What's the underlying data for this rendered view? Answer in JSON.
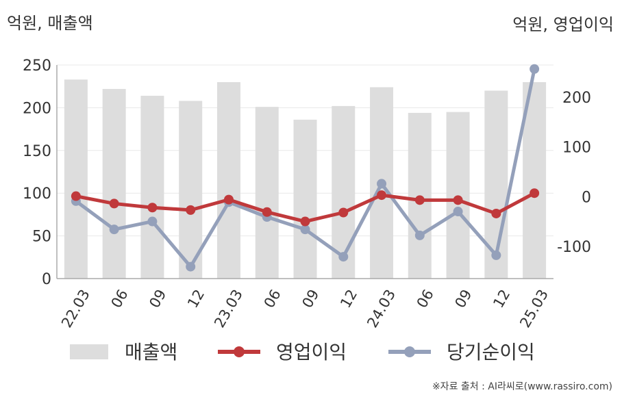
{
  "units": {
    "left": "억원, 매출액",
    "right": "억원, 영업이익"
  },
  "source": "※자료 출처 : AI라씨로(www.rassiro.com)",
  "colors": {
    "bar": "#dddddd",
    "operating_profit": "#c0393b",
    "net_profit": "#94a0ba",
    "grid": "#e8e8e8",
    "axis": "#aaaaaa"
  },
  "chart_data": {
    "type": "bar",
    "categories": [
      "22.03",
      "06",
      "09",
      "12",
      "23.03",
      "06",
      "09",
      "12",
      "24.03",
      "06",
      "09",
      "12",
      "25.03"
    ],
    "left_axis": {
      "ylim": [
        0,
        250
      ],
      "ticks": [
        0,
        50,
        100,
        150,
        200,
        250
      ]
    },
    "right_axis": {
      "ylim": [
        -165,
        265
      ],
      "ticks": [
        -100,
        0,
        100,
        200
      ]
    },
    "grid": true,
    "legend_position": "bottom",
    "series": [
      {
        "name": "매출액",
        "type": "bar",
        "axis": "left",
        "values": [
          233,
          222,
          214,
          208,
          230,
          201,
          186,
          202,
          224,
          194,
          195,
          220,
          230
        ]
      },
      {
        "name": "영업이익",
        "type": "line",
        "axis": "right",
        "values": [
          1,
          -14,
          -22,
          -27,
          -6,
          -31,
          -50,
          -32,
          3,
          -7,
          -7,
          -34,
          7
        ]
      },
      {
        "name": "당기순이익",
        "type": "line",
        "axis": "right",
        "values": [
          -9,
          -66,
          -50,
          -141,
          -11,
          -41,
          -66,
          -121,
          26,
          -78,
          -30,
          -118,
          257
        ]
      }
    ]
  }
}
